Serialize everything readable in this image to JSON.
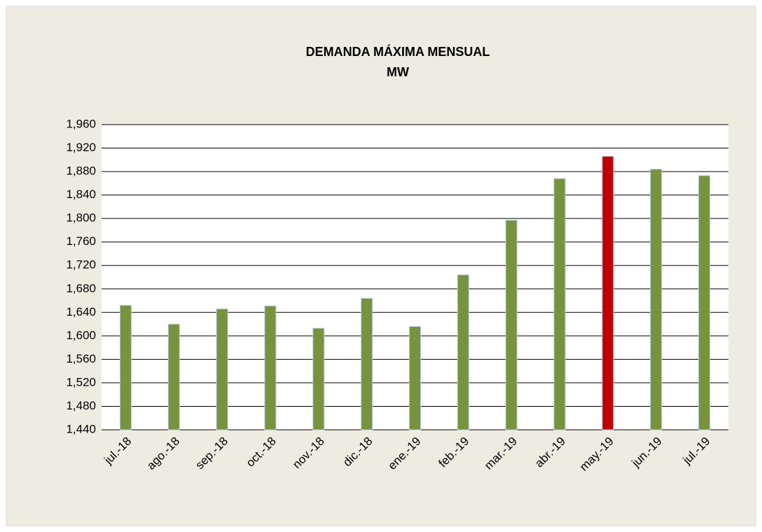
{
  "chart_data": {
    "type": "bar",
    "title": "DEMANDA  MÁXIMA  MENSUAL",
    "subtitle": "MW",
    "categories": [
      "jul.-18",
      "ago.-18",
      "sep.-18",
      "oct.-18",
      "nov.-18",
      "dic.-18",
      "ene.-19",
      "feb.-19",
      "mar.-19",
      "abr.-19",
      "may.-19",
      "jun.-19",
      "jul.-19"
    ],
    "values": [
      1652,
      1620,
      1646,
      1651,
      1613,
      1664,
      1616,
      1704,
      1797,
      1868,
      1906,
      1884,
      1873
    ],
    "colors": [
      "#77933c",
      "#77933c",
      "#77933c",
      "#77933c",
      "#77933c",
      "#77933c",
      "#77933c",
      "#77933c",
      "#77933c",
      "#77933c",
      "#c00000",
      "#77933c",
      "#77933c"
    ],
    "ylim": [
      1440,
      1960
    ],
    "yticks": [
      {
        "value": 1440,
        "label": "1,440"
      },
      {
        "value": 1480,
        "label": "1,480"
      },
      {
        "value": 1520,
        "label": "1,520"
      },
      {
        "value": 1560,
        "label": "1,560"
      },
      {
        "value": 1600,
        "label": "1,600"
      },
      {
        "value": 1640,
        "label": "1,640"
      },
      {
        "value": 1680,
        "label": "1,680"
      },
      {
        "value": 1720,
        "label": "1,720"
      },
      {
        "value": 1760,
        "label": "1,760"
      },
      {
        "value": 1800,
        "label": "1,800"
      },
      {
        "value": 1840,
        "label": "1,840"
      },
      {
        "value": 1880,
        "label": "1,880"
      },
      {
        "value": 1920,
        "label": "1,920"
      },
      {
        "value": 1960,
        "label": "1,960"
      }
    ],
    "grid": true
  }
}
